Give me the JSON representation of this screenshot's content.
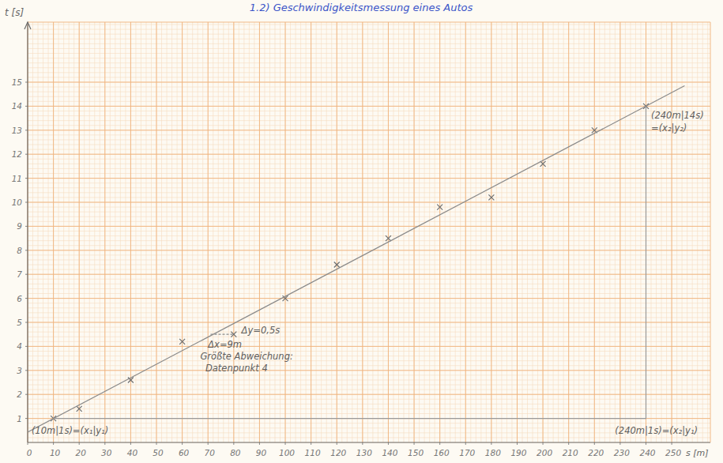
{
  "chart_data": {
    "type": "scatter",
    "title": "1.2) Geschwindigkeitsmessung eines Autos",
    "x_label": "s [m]",
    "y_label": "t [s]",
    "xlim": [
      0,
      265
    ],
    "ylim": [
      0,
      17.5
    ],
    "xticks": [
      0,
      10,
      20,
      30,
      40,
      50,
      60,
      70,
      80,
      90,
      100,
      110,
      120,
      130,
      140,
      150,
      160,
      170,
      180,
      190,
      200,
      210,
      220,
      230,
      240,
      250
    ],
    "yticks": [
      1,
      2,
      3,
      4,
      5,
      6,
      7,
      8,
      9,
      10,
      11,
      12,
      13,
      14,
      15
    ],
    "grid": true,
    "series": [
      {
        "type": "scatter",
        "marker": "x",
        "color": "#6e6e6e",
        "x": [
          10,
          20,
          40,
          60,
          80,
          100,
          120,
          140,
          160,
          180,
          200,
          220,
          240
        ],
        "values": [
          1,
          1.4,
          2.6,
          4.2,
          4.5,
          6,
          7.4,
          8.5,
          9.8,
          10.2,
          11.6,
          13,
          14
        ]
      },
      {
        "type": "line",
        "line_style": "solid",
        "color": "#8a8a8a",
        "x": [
          0,
          255
        ],
        "values": [
          0.43,
          14.85
        ]
      },
      {
        "type": "line",
        "line_style": "solid",
        "color": "#9a9a9a",
        "x": [
          10,
          240,
          240
        ],
        "values": [
          1,
          1,
          14
        ]
      },
      {
        "type": "line",
        "line_style": "dashed",
        "color": "#8a8a8a",
        "x": [
          71,
          80
        ],
        "values": [
          4.5,
          4.5
        ]
      }
    ],
    "annotations": [
      {
        "text": "(10m|1s)=(x₁|y₁)"
      },
      {
        "text": "(240m|14s)"
      },
      {
        "text": "=(x₂|y₂)"
      },
      {
        "text": "(240m|1s)=(x₂|y₁)"
      },
      {
        "text": "Δy=0,5s"
      },
      {
        "text": "Δx=9m"
      },
      {
        "text": "Größte Abweichung:"
      },
      {
        "text": "Datenpunkt 4"
      }
    ]
  }
}
